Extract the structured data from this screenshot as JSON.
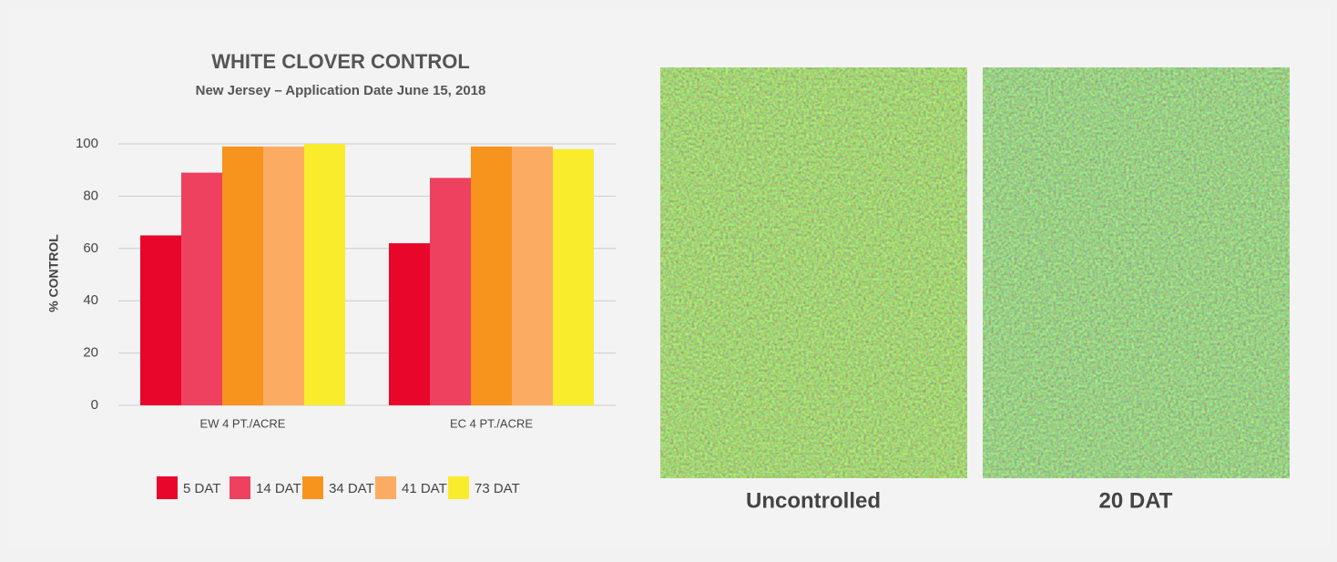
{
  "chart_data": {
    "type": "bar",
    "title": "WHITE CLOVER CONTROL",
    "subtitle": "New Jersey – Application Date June 15, 2018",
    "y_label": "% CONTROL",
    "categories": [
      "EW 4 PT./ACRE",
      "EC 4 PT./ACRE"
    ],
    "series": [
      {
        "name": "5 DAT",
        "color": "#e8062a",
        "values": [
          65,
          62
        ]
      },
      {
        "name": "14 DAT",
        "color": "#ee4160",
        "values": [
          89,
          87
        ]
      },
      {
        "name": "34 DAT",
        "color": "#f7941d",
        "values": [
          99,
          99
        ]
      },
      {
        "name": "41 DAT",
        "color": "#fbac62",
        "values": [
          99,
          99
        ]
      },
      {
        "name": "73 DAT",
        "color": "#f8ec2c",
        "values": [
          100,
          98
        ]
      }
    ],
    "ylim": [
      0,
      100
    ],
    "yticks": [
      0,
      20,
      40,
      60,
      80,
      100
    ],
    "grid": true,
    "legend": "bottom"
  },
  "photos": [
    {
      "caption": "Uncontrolled"
    },
    {
      "caption": "20 DAT"
    }
  ]
}
